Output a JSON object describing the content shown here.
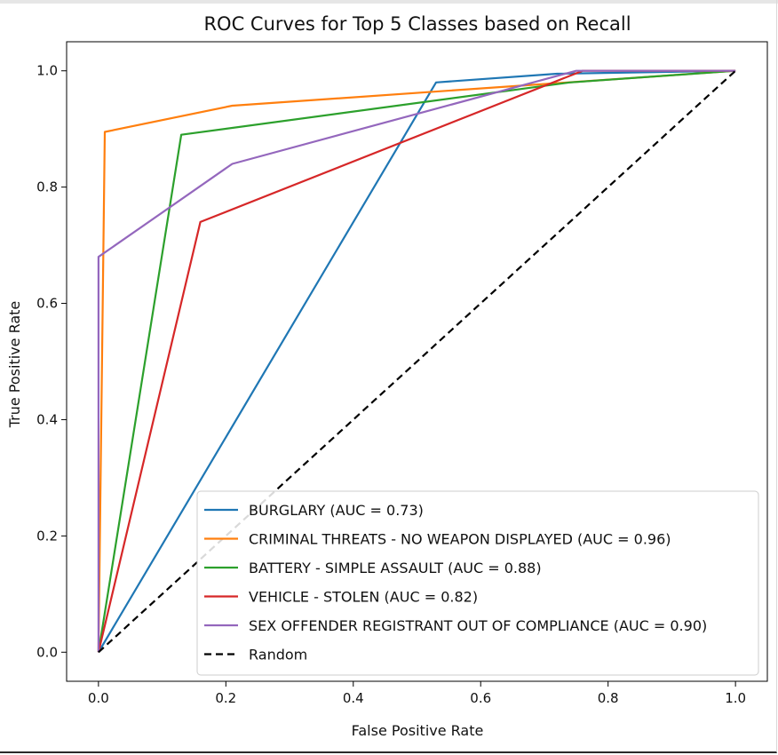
{
  "chart_data": {
    "type": "line",
    "title": "ROC Curves for Top 5 Classes based on Recall",
    "xlabel": "False Positive Rate",
    "ylabel": "True Positive Rate",
    "xlim": [
      -0.05,
      1.05
    ],
    "ylim": [
      -0.05,
      1.05
    ],
    "xticks": [
      0.0,
      0.2,
      0.4,
      0.6,
      0.8,
      1.0
    ],
    "yticks": [
      0.0,
      0.2,
      0.4,
      0.6,
      0.8,
      1.0
    ],
    "xtick_labels": [
      "0.0",
      "0.2",
      "0.4",
      "0.6",
      "0.8",
      "1.0"
    ],
    "ytick_labels": [
      "0.0",
      "0.2",
      "0.4",
      "0.6",
      "0.8",
      "1.0"
    ],
    "grid": false,
    "legend_position": "lower-right",
    "series": [
      {
        "name": "BURGLARY (AUC = 0.73)",
        "color": "#1f77b4",
        "dash": "solid",
        "x": [
          0.0,
          0.53,
          0.72,
          1.0
        ],
        "y": [
          0.0,
          0.98,
          0.995,
          1.0
        ]
      },
      {
        "name": "CRIMINAL THREATS - NO WEAPON DISPLAYED (AUC = 0.96)",
        "color": "#ff7f0e",
        "dash": "solid",
        "x": [
          0.0,
          0.01,
          0.21,
          1.0
        ],
        "y": [
          0.0,
          0.895,
          0.94,
          1.0
        ]
      },
      {
        "name": "BATTERY - SIMPLE ASSAULT (AUC = 0.88)",
        "color": "#2ca02c",
        "dash": "solid",
        "x": [
          0.0,
          0.13,
          0.74,
          1.0
        ],
        "y": [
          0.0,
          0.89,
          0.98,
          1.0
        ]
      },
      {
        "name": "VEHICLE - STOLEN (AUC = 0.82)",
        "color": "#d62728",
        "dash": "solid",
        "x": [
          0.0,
          0.16,
          0.76,
          1.0
        ],
        "y": [
          0.0,
          0.74,
          1.0,
          1.0
        ]
      },
      {
        "name": "SEX OFFENDER REGISTRANT OUT OF COMPLIANCE (AUC = 0.90)",
        "color": "#9467bd",
        "dash": "solid",
        "x": [
          0.0,
          0.0,
          0.21,
          0.75,
          1.0
        ],
        "y": [
          0.0,
          0.68,
          0.84,
          1.0,
          1.0
        ]
      },
      {
        "name": "Random",
        "color": "#000000",
        "dash": "dashed",
        "x": [
          0.0,
          1.0
        ],
        "y": [
          0.0,
          1.0
        ]
      }
    ]
  }
}
